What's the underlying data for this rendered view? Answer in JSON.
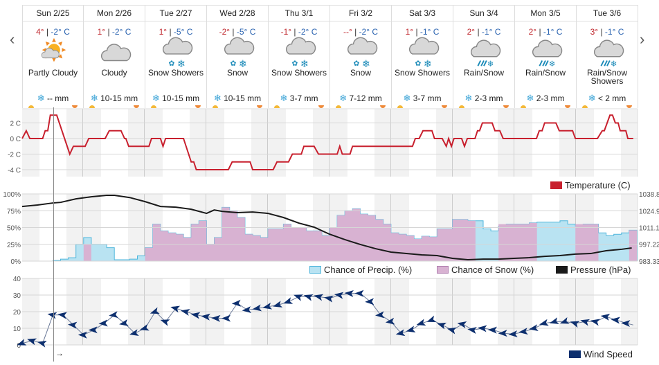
{
  "nav": {
    "prev": "‹",
    "next": "›"
  },
  "days": [
    {
      "name": "Sun 2/25",
      "high": "4°",
      "low": "-2° C",
      "icon": "partly-cloudy",
      "condition": "Partly Cloudy",
      "amount": "-- mm"
    },
    {
      "name": "Mon 2/26",
      "high": "1°",
      "low": "-2° C",
      "icon": "cloudy",
      "condition": "Cloudy",
      "amount": "10-15 mm"
    },
    {
      "name": "Tue 2/27",
      "high": "1°",
      "low": "-5° C",
      "icon": "snow-showers",
      "condition": "Snow Showers",
      "amount": "10-15 mm"
    },
    {
      "name": "Wed 2/28",
      "high": "-2°",
      "low": "-5° C",
      "icon": "snow",
      "condition": "Snow",
      "amount": "10-15 mm"
    },
    {
      "name": "Thu 3/1",
      "high": "-1°",
      "low": "-2° C",
      "icon": "snow-showers",
      "condition": "Snow Showers",
      "amount": "3-7 mm"
    },
    {
      "name": "Fri 3/2",
      "high": "--°",
      "low": "-2° C",
      "icon": "snow",
      "condition": "Snow",
      "amount": "7-12 mm"
    },
    {
      "name": "Sat 3/3",
      "high": "1°",
      "low": "-1° C",
      "icon": "snow-showers",
      "condition": "Snow Showers",
      "amount": "3-7 mm"
    },
    {
      "name": "Sun 3/4",
      "high": "2°",
      "low": "-1° C",
      "icon": "rain-snow",
      "condition": "Rain/Snow",
      "amount": "2-3 mm"
    },
    {
      "name": "Mon 3/5",
      "high": "2°",
      "low": "-1° C",
      "icon": "rain-snow",
      "condition": "Rain/Snow",
      "amount": "2-3 mm"
    },
    {
      "name": "Tue 3/6",
      "high": "3°",
      "low": "-1° C",
      "icon": "rain-snow",
      "condition": "Rain/Snow Showers",
      "amount": "< 2 mm"
    }
  ],
  "sep": " | ",
  "snow_icon": "❄",
  "colors": {
    "temperature": "#c8202e",
    "precip": "#4fb6dc",
    "precip_fill": "#b9e3f2",
    "snow": "#b07fb0",
    "snow_fill": "#d8b2d2",
    "pressure": "#1a1a1a",
    "wind": "#0d2f6e"
  },
  "chart_data": [
    {
      "type": "line",
      "title": "Temperature (C)",
      "x_unit": "hours from start",
      "xlim": [
        0,
        240
      ],
      "ylim": [
        -4.8,
        3.9
      ],
      "yticks": [
        {
          "v": 2,
          "label": "2 C"
        },
        {
          "v": 0,
          "label": "0 C"
        },
        {
          "v": -2,
          "label": "-2 C"
        },
        {
          "v": -4,
          "label": "-4 C"
        }
      ],
      "legend": "Temperature (C)",
      "points": [
        [
          0,
          0
        ],
        [
          1.6,
          1
        ],
        [
          3,
          0
        ],
        [
          8,
          0
        ],
        [
          9,
          1
        ],
        [
          10,
          1
        ],
        [
          11,
          3
        ],
        [
          13.5,
          3
        ],
        [
          18.6,
          -2
        ],
        [
          20,
          -1
        ],
        [
          24.6,
          -1
        ],
        [
          26,
          0
        ],
        [
          32.4,
          0
        ],
        [
          34,
          1
        ],
        [
          38.6,
          1
        ],
        [
          40,
          0
        ],
        [
          40.5,
          0
        ],
        [
          41.6,
          -1
        ],
        [
          49.5,
          -1
        ],
        [
          50.5,
          0
        ],
        [
          54,
          0
        ],
        [
          55,
          -1
        ],
        [
          56,
          0
        ],
        [
          63,
          0
        ],
        [
          64,
          -1
        ],
        [
          65,
          -2
        ],
        [
          66,
          -3
        ],
        [
          67,
          -3
        ],
        [
          68,
          -4
        ],
        [
          80.5,
          -4
        ],
        [
          82,
          -3
        ],
        [
          89,
          -3
        ],
        [
          90,
          -4
        ],
        [
          98,
          -4
        ],
        [
          99.5,
          -3
        ],
        [
          104,
          -3
        ],
        [
          105.5,
          -2
        ],
        [
          109,
          -2
        ],
        [
          110,
          -1
        ],
        [
          114,
          -1
        ],
        [
          115.7,
          -2
        ],
        [
          123,
          -2
        ],
        [
          124,
          -1
        ],
        [
          125,
          -2
        ],
        [
          128,
          -2
        ],
        [
          129,
          -1
        ],
        [
          152.4,
          -1
        ],
        [
          153.5,
          0
        ],
        [
          155,
          0
        ],
        [
          156.5,
          1
        ],
        [
          160,
          1
        ],
        [
          161,
          0
        ],
        [
          164,
          0
        ],
        [
          165.6,
          -1
        ],
        [
          166.5,
          0
        ],
        [
          167.6,
          -1
        ],
        [
          168.6,
          0
        ],
        [
          171.6,
          0
        ],
        [
          172.7,
          -1
        ],
        [
          173.8,
          0
        ],
        [
          176.8,
          0
        ],
        [
          177.8,
          1
        ],
        [
          178.6,
          1
        ],
        [
          179.7,
          2
        ],
        [
          183.5,
          2
        ],
        [
          184.6,
          1
        ],
        [
          186.5,
          1
        ],
        [
          187.8,
          0
        ],
        [
          200.8,
          0
        ],
        [
          201.9,
          1
        ],
        [
          203,
          1
        ],
        [
          204,
          2
        ],
        [
          208.4,
          2
        ],
        [
          209.7,
          1
        ],
        [
          214.9,
          1
        ],
        [
          216,
          0
        ],
        [
          224.6,
          0
        ],
        [
          226.5,
          1
        ],
        [
          227.3,
          1
        ],
        [
          228.4,
          2
        ],
        [
          229.5,
          3
        ],
        [
          230.5,
          3
        ],
        [
          231.6,
          2
        ],
        [
          232.7,
          2
        ],
        [
          233.5,
          1
        ],
        [
          235.7,
          1
        ],
        [
          236.5,
          0
        ],
        [
          238.6,
          0
        ]
      ]
    },
    {
      "type": "area",
      "x_unit": "hours from start (3-hour steps)",
      "step_hours": 3,
      "ylim": [
        0,
        100
      ],
      "yticks": [
        {
          "v": 100,
          "label": "100%"
        },
        {
          "v": 75,
          "label": "75%"
        },
        {
          "v": 50,
          "label": "50%"
        },
        {
          "v": 25,
          "label": "25%"
        },
        {
          "v": 0,
          "label": "0%"
        }
      ],
      "y2ticks": [
        {
          "v": 1038.88,
          "label": "1038.88"
        },
        {
          "v": 1024.99,
          "label": "1024.99"
        },
        {
          "v": 1011.11,
          "label": "1011.11"
        },
        {
          "v": 997.22,
          "label": "997.22"
        },
        {
          "v": 983.33,
          "label": "983.33"
        }
      ],
      "y2lim": [
        983.33,
        1038.88
      ],
      "legend": [
        "Chance of Precip. (%)",
        "Chance of Snow (%)",
        "Pressure (hPa)"
      ],
      "series": [
        {
          "name": "Chance of Precip. (%)",
          "values": [
            0,
            0,
            0,
            0,
            1,
            3,
            5,
            25,
            35,
            25,
            25,
            20,
            2,
            2,
            3,
            8,
            20,
            55,
            45,
            42,
            40,
            35,
            55,
            60,
            25,
            35,
            80,
            75,
            65,
            40,
            38,
            35,
            48,
            48,
            55,
            50,
            50,
            45,
            45,
            38,
            50,
            68,
            75,
            78,
            70,
            68,
            62,
            55,
            42,
            40,
            38,
            33,
            37,
            36,
            48,
            48,
            62,
            62,
            60,
            60,
            48,
            45,
            52,
            55,
            55,
            55,
            57,
            58,
            58,
            58,
            60,
            55,
            52,
            55,
            55,
            42,
            38,
            40,
            42,
            46,
            46
          ]
        },
        {
          "name": "Chance of Snow (%)",
          "values": [
            0,
            0,
            0,
            0,
            0,
            0,
            0,
            0,
            25,
            0,
            0,
            0,
            0,
            0,
            0,
            0,
            20,
            55,
            45,
            42,
            40,
            35,
            55,
            60,
            25,
            35,
            80,
            75,
            65,
            40,
            38,
            35,
            48,
            48,
            55,
            50,
            50,
            45,
            45,
            38,
            50,
            68,
            75,
            78,
            70,
            68,
            62,
            55,
            42,
            40,
            38,
            33,
            37,
            36,
            48,
            48,
            62,
            62,
            60,
            0,
            0,
            0,
            55,
            55,
            55,
            55,
            57,
            0,
            0,
            0,
            0,
            0,
            55,
            55,
            55,
            0,
            0,
            0,
            0,
            46,
            46
          ]
        },
        {
          "name": "Pressure (hPa)",
          "points": [
            [
              0,
              1028.5
            ],
            [
              6,
              1029.7
            ],
            [
              12,
              1031.4
            ],
            [
              15,
              1031.9
            ],
            [
              21,
              1034.8
            ],
            [
              27,
              1036.5
            ],
            [
              33,
              1037.7
            ],
            [
              36,
              1037.7
            ],
            [
              42,
              1035.9
            ],
            [
              48,
              1032.5
            ],
            [
              54,
              1028.5
            ],
            [
              60,
              1027.9
            ],
            [
              66,
              1026.2
            ],
            [
              72,
              1022.8
            ],
            [
              75,
              1025.6
            ],
            [
              78,
              1024.5
            ],
            [
              84,
              1023.4
            ],
            [
              90,
              1023.9
            ],
            [
              96,
              1022.8
            ],
            [
              102,
              1019.4
            ],
            [
              108,
              1014.8
            ],
            [
              114,
              1011.4
            ],
            [
              120,
              1005.6
            ],
            [
              126,
              1001.1
            ],
            [
              132,
              997.1
            ],
            [
              138,
              993.6
            ],
            [
              144,
              990.8
            ],
            [
              150,
              989.6
            ],
            [
              156,
              988.5
            ],
            [
              162,
              987.9
            ],
            [
              168,
              985.6
            ],
            [
              174,
              984.5
            ],
            [
              180,
              985.0
            ],
            [
              186,
              985.0
            ],
            [
              192,
              985.6
            ],
            [
              198,
              986.2
            ],
            [
              204,
              987.3
            ],
            [
              210,
              987.9
            ],
            [
              216,
              989.1
            ],
            [
              222,
              989.6
            ],
            [
              228,
              991.9
            ],
            [
              234,
              993.1
            ],
            [
              238,
              994.2
            ]
          ]
        }
      ]
    },
    {
      "type": "line",
      "title": "Wind Speed",
      "x_unit": "hours from start (4-hour steps)",
      "step_hours": 4,
      "ylim": [
        0,
        40
      ],
      "yticks": [
        {
          "v": 40,
          "label": "40"
        },
        {
          "v": 30,
          "label": "30"
        },
        {
          "v": 20,
          "label": "20"
        },
        {
          "v": 10,
          "label": "10"
        },
        {
          "v": 0,
          "label": "0"
        }
      ],
      "legend": "Wind Speed",
      "values": [
        1,
        2.5,
        1,
        18,
        18,
        12,
        6,
        9,
        13,
        18,
        13,
        7,
        10,
        20,
        14,
        22,
        20,
        18,
        17,
        16,
        16,
        25,
        21,
        22,
        23,
        24,
        26,
        29,
        29,
        29,
        28,
        30,
        31,
        31,
        26,
        18,
        14,
        7,
        9,
        13,
        15,
        12,
        9,
        12.5,
        9,
        10,
        9,
        7,
        6.5,
        8,
        10,
        13,
        14,
        14,
        13,
        14,
        14,
        17,
        15,
        13
      ],
      "end_value": 12
    }
  ],
  "cursor_arrow": "→"
}
